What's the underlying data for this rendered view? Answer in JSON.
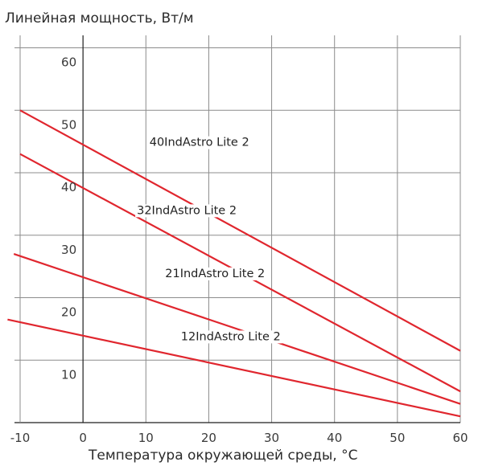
{
  "chart_data": {
    "type": "line",
    "title": "Линейная мощность, Вт/м",
    "xlabel": "Температура окружающей среды, °С",
    "ylabel": "",
    "xlim": [
      -10,
      60
    ],
    "ylim": [
      0,
      62
    ],
    "x_ticks": [
      -10,
      0,
      10,
      20,
      30,
      40,
      50,
      60
    ],
    "y_ticks": [
      10,
      20,
      30,
      40,
      50,
      60
    ],
    "grid": true,
    "colors": {
      "line": "#e0262e",
      "grid": "#8c8c8c",
      "axis": "#1f1f1f"
    },
    "series": [
      {
        "name": "40IndAstro Lite 2",
        "x": [
          -10,
          60
        ],
        "y": [
          50.0,
          11.5
        ]
      },
      {
        "name": "32IndAstro Lite 2",
        "x": [
          -10,
          60
        ],
        "y": [
          43.0,
          5.0
        ]
      },
      {
        "name": "21IndAstro Lite 2",
        "x": [
          -11,
          60
        ],
        "y": [
          27.0,
          3.0
        ]
      },
      {
        "name": "12IndAstro Lite 2",
        "x": [
          -12,
          60
        ],
        "y": [
          16.5,
          1.0
        ]
      }
    ]
  }
}
